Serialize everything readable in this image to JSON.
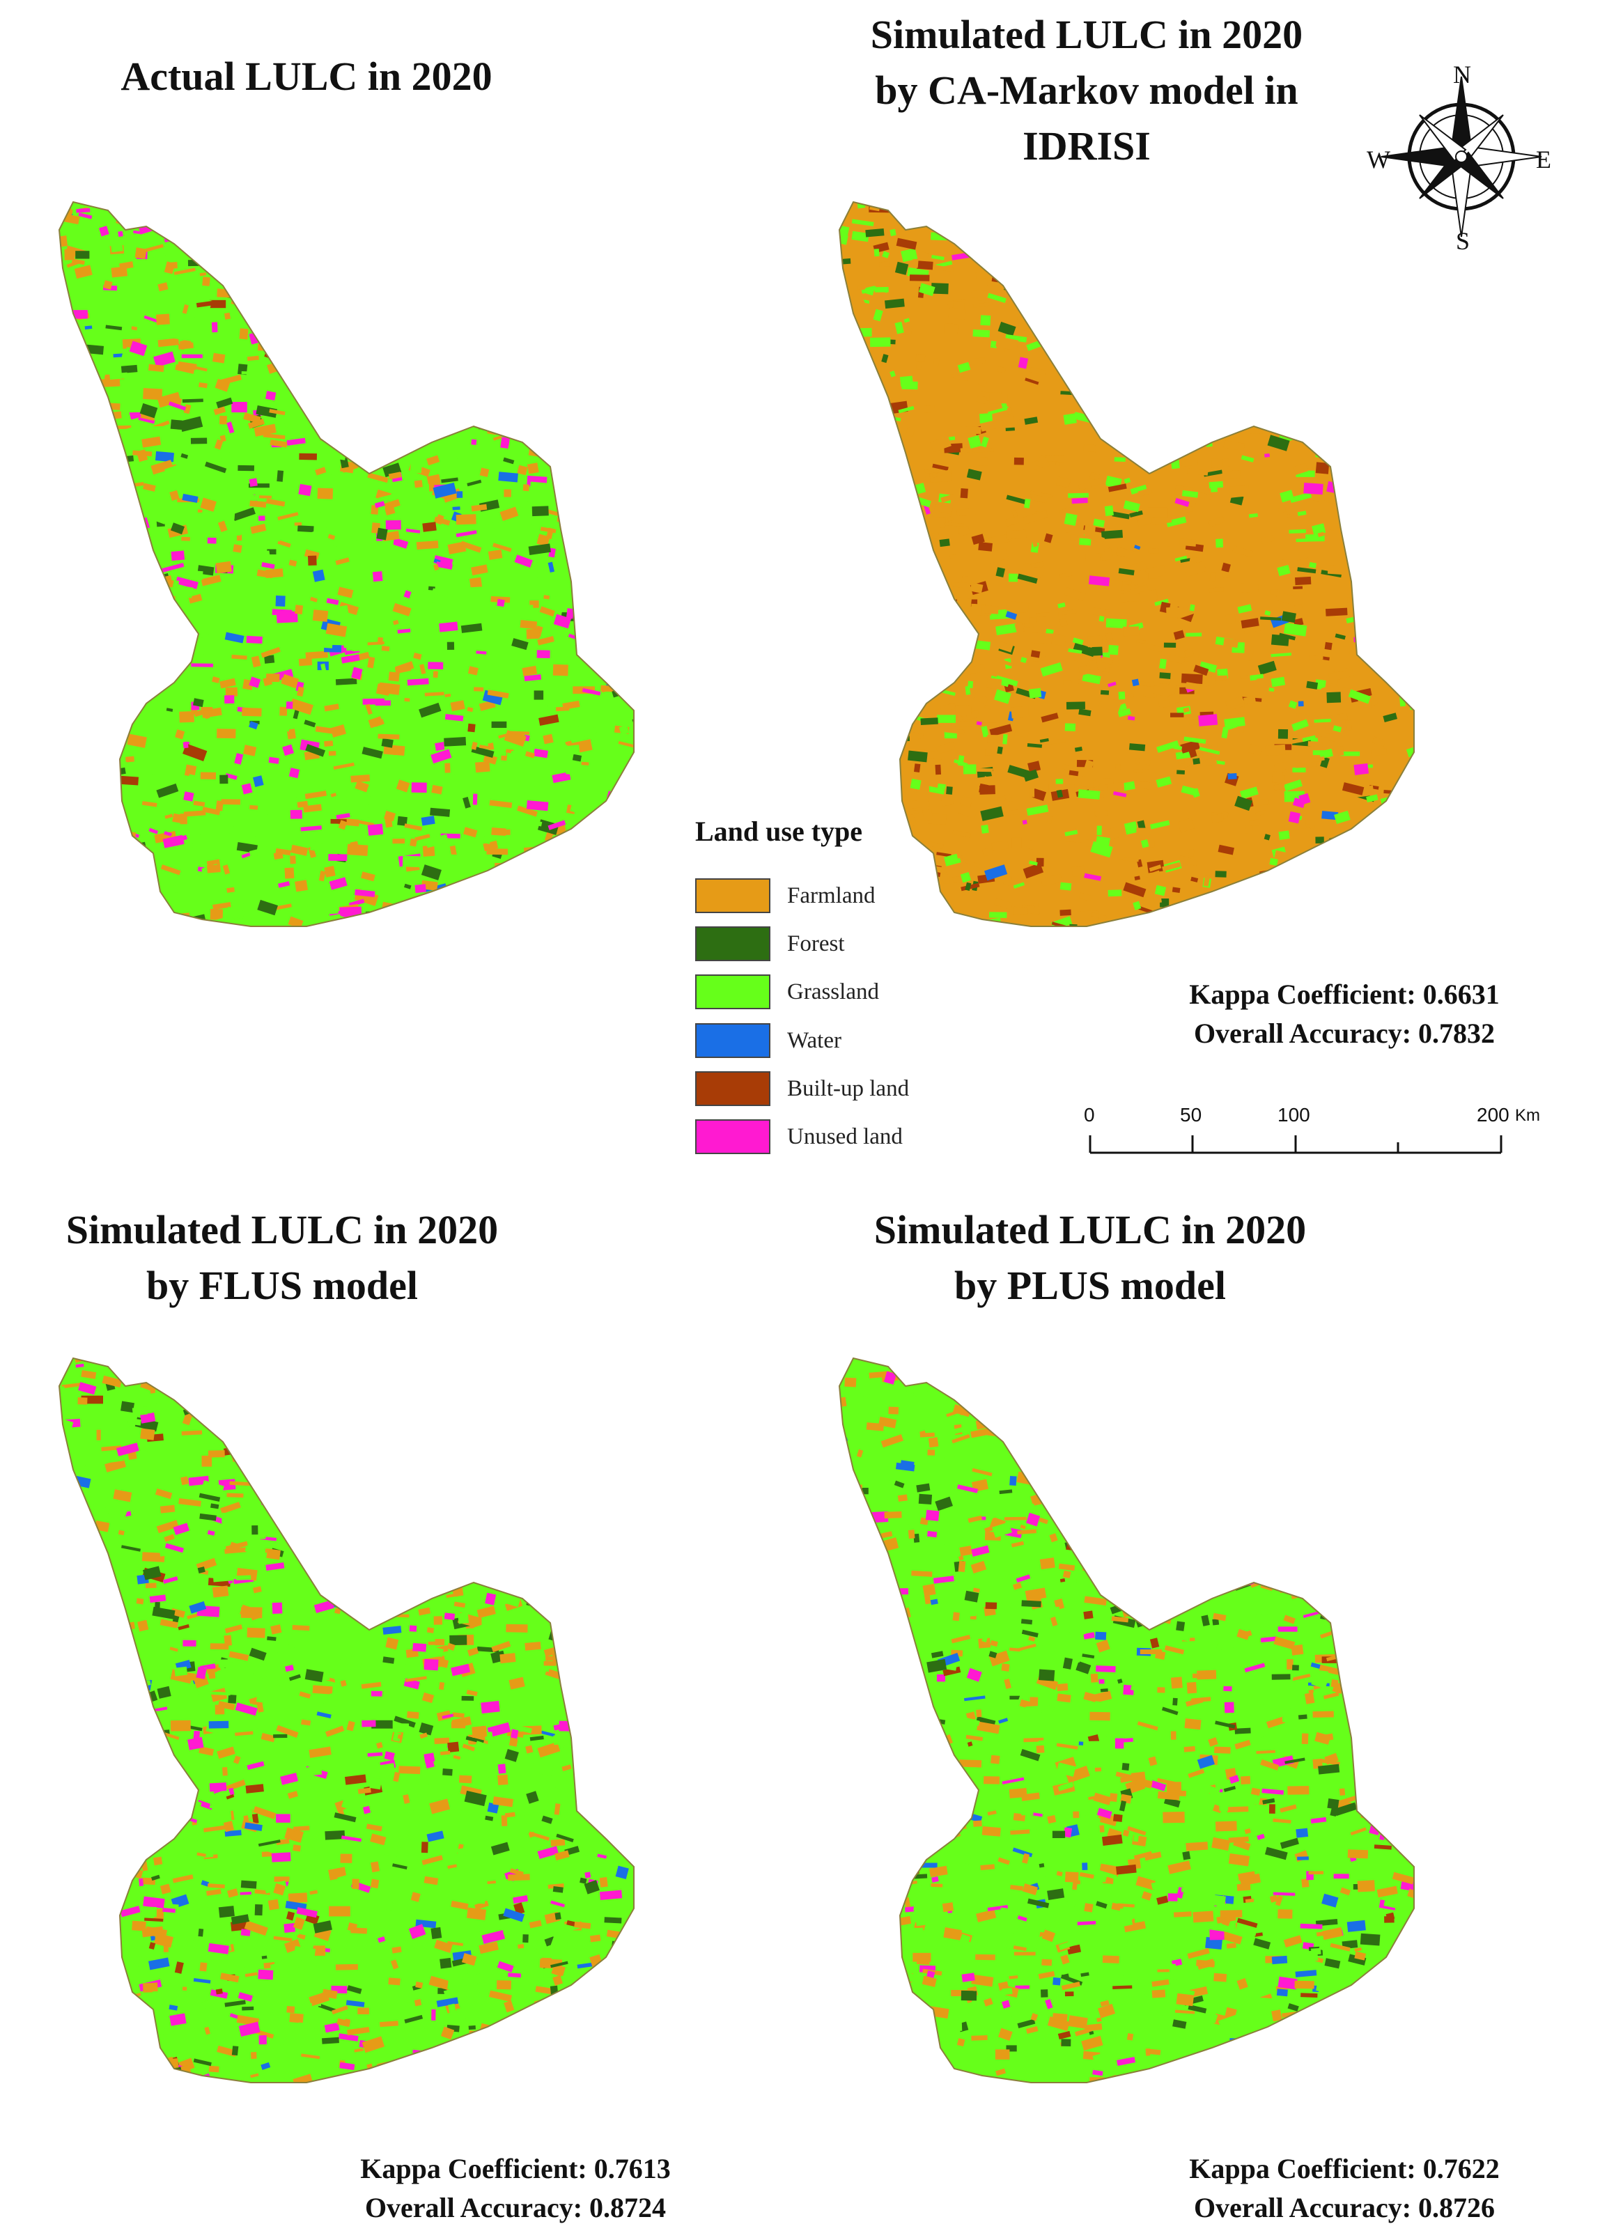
{
  "panels": [
    {
      "title_lines": [
        "Actual LULC in 2020"
      ],
      "kappa": "",
      "accuracy": ""
    },
    {
      "title_lines": [
        "Simulated LULC in 2020",
        "by CA-Markov model in",
        "IDRISI"
      ],
      "kappa": "Kappa Coefficient: 0.6631",
      "accuracy": "Overall Accuracy: 0.7832"
    },
    {
      "title_lines": [
        "Simulated LULC in 2020",
        "by FLUS model"
      ],
      "kappa": "Kappa Coefficient: 0.7613",
      "accuracy": "Overall Accuracy: 0.8724"
    },
    {
      "title_lines": [
        "Simulated LULC in 2020",
        "by PLUS model"
      ],
      "kappa": "Kappa Coefficient: 0.7622",
      "accuracy": "Overall Accuracy: 0.8726"
    }
  ],
  "legend": {
    "title": "Land use type",
    "items": [
      {
        "label": "Farmland",
        "color": "#e69b17"
      },
      {
        "label": "Forest",
        "color": "#2d6e12"
      },
      {
        "label": "Grassland",
        "color": "#66ff1a"
      },
      {
        "label": "Water",
        "color": "#1a6fe6"
      },
      {
        "label": "Built-up land",
        "color": "#a83c06"
      },
      {
        "label": "Unused land",
        "color": "#ff1ad1"
      }
    ]
  },
  "scale_bar": {
    "ticks": [
      "0",
      "50",
      "100",
      "200"
    ],
    "unit": "Km"
  },
  "compass": {
    "n": "N",
    "s": "S",
    "e": "E",
    "w": "W"
  }
}
